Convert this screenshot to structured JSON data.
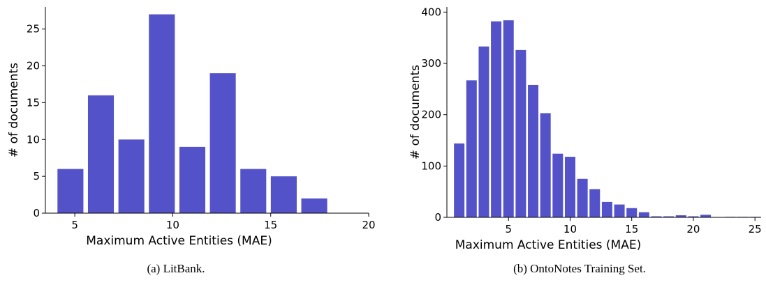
{
  "chart_data": [
    {
      "type": "histogram",
      "caption": "(a) LitBank.",
      "xlabel": "Maximum Active Entities (MAE)",
      "ylabel": "# of documents",
      "color": "#5352c9",
      "bins": [
        4,
        5.556,
        7.111,
        8.667,
        10.222,
        11.778,
        13.333,
        14.889,
        16.444,
        18
      ],
      "values": [
        6,
        16,
        10,
        27,
        9,
        19,
        6,
        5,
        2
      ],
      "xlim": [
        3.5,
        20
      ],
      "xticks": [
        5,
        10,
        15,
        20
      ],
      "ylim": [
        0,
        28
      ],
      "yticks": [
        0,
        5,
        10,
        15,
        20,
        25
      ]
    },
    {
      "type": "histogram",
      "caption": "(b) OntoNotes Training Set.",
      "xlabel": "Maximum Active Entities (MAE)",
      "ylabel": "# of documents",
      "color": "#5352c9",
      "bins": [
        0.5,
        1.5,
        2.5,
        3.5,
        4.5,
        5.5,
        6.5,
        7.5,
        8.5,
        9.5,
        10.5,
        11.5,
        12.5,
        13.5,
        14.5,
        15.5,
        16.5,
        17.5,
        18.5,
        19.5,
        20.5,
        21.5,
        22.5,
        23.5,
        24.5,
        25.5
      ],
      "values": [
        144,
        267,
        333,
        382,
        384,
        326,
        258,
        203,
        124,
        118,
        75,
        55,
        30,
        25,
        18,
        10,
        2,
        2,
        4,
        2,
        5,
        0,
        1,
        1,
        1
      ],
      "xlim": [
        0,
        25.5
      ],
      "xticks": [
        5,
        10,
        15,
        20,
        25
      ],
      "ylim": [
        0,
        410
      ],
      "yticks": [
        0,
        100,
        200,
        300,
        400
      ]
    }
  ]
}
